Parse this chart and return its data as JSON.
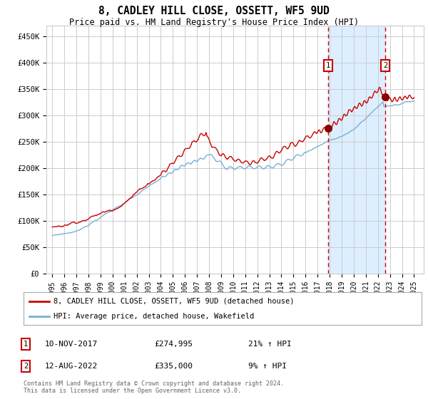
{
  "title": "8, CADLEY HILL CLOSE, OSSETT, WF5 9UD",
  "subtitle": "Price paid vs. HM Land Registry's House Price Index (HPI)",
  "footer": "Contains HM Land Registry data © Crown copyright and database right 2024.\nThis data is licensed under the Open Government Licence v3.0.",
  "legend_line1": "8, CADLEY HILL CLOSE, OSSETT, WF5 9UD (detached house)",
  "legend_line2": "HPI: Average price, detached house, Wakefield",
  "annotation1_date": "10-NOV-2017",
  "annotation1_price": "£274,995",
  "annotation1_hpi": "21% ↑ HPI",
  "annotation2_date": "12-AUG-2022",
  "annotation2_price": "£335,000",
  "annotation2_hpi": "9% ↑ HPI",
  "hpi_line_color": "#7ab0d4",
  "sale_line_color": "#cc0000",
  "sale_dot_color": "#8b0000",
  "dashed_line_color": "#cc0000",
  "shaded_region_color": "#ddeeff",
  "annotation_box_color": "#cc0000",
  "background_color": "#ffffff",
  "grid_color": "#cccccc",
  "ylim": [
    0,
    470000
  ],
  "yticks": [
    0,
    50000,
    100000,
    150000,
    200000,
    250000,
    300000,
    350000,
    400000,
    450000
  ],
  "ytick_labels": [
    "£0",
    "£50K",
    "£100K",
    "£150K",
    "£200K",
    "£250K",
    "£300K",
    "£350K",
    "£400K",
    "£450K"
  ],
  "sale1_x": 2017.86,
  "sale1_y": 274995,
  "sale2_x": 2022.62,
  "sale2_y": 335000,
  "shade_x1": 2017.86,
  "shade_x2": 2022.62,
  "xlim_left": 1994.5,
  "xlim_right": 2025.8
}
